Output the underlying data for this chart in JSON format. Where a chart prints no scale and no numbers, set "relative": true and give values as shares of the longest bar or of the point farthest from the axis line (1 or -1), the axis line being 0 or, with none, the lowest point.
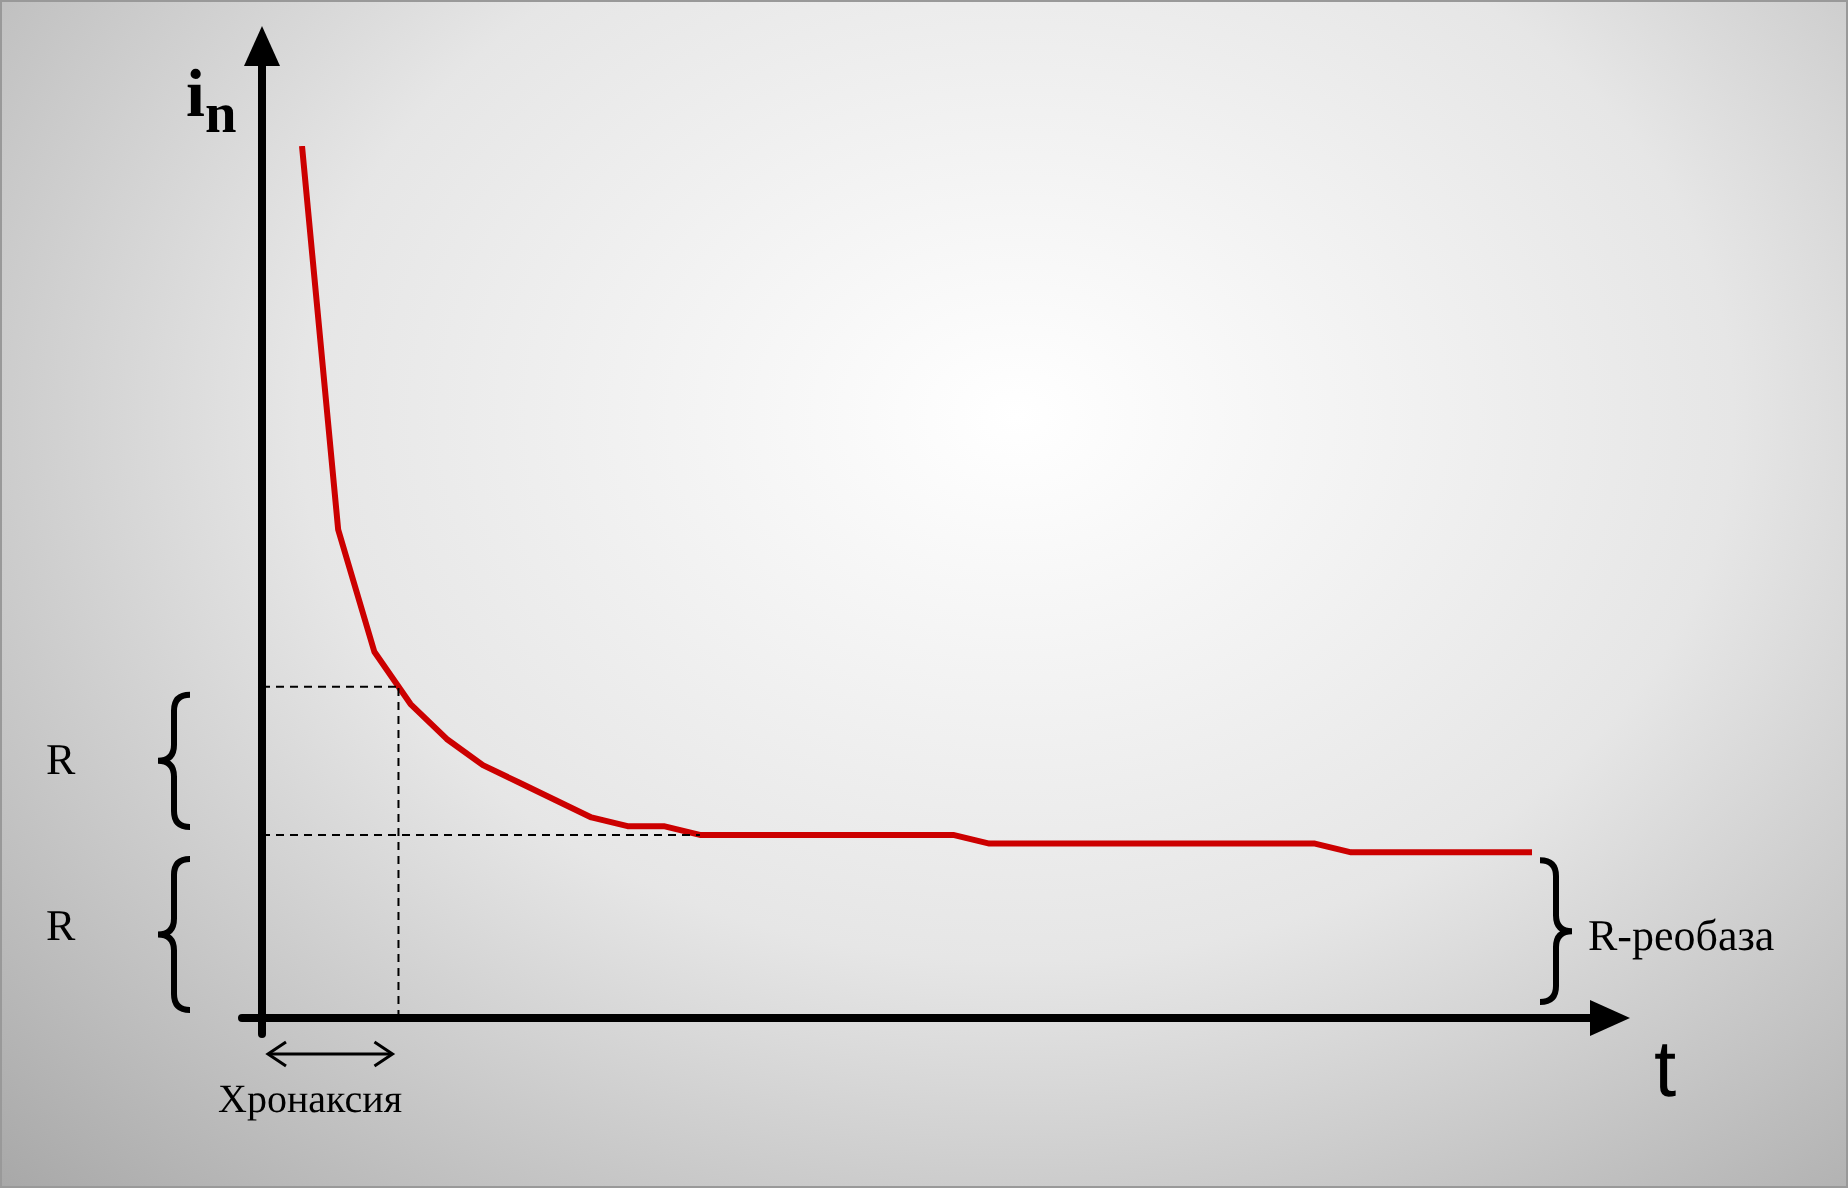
{
  "chart_data": {
    "type": "line",
    "relative": true,
    "xlabel": "t",
    "ylabel": "i$_{n}$",
    "categories": [
      null,
      null,
      null,
      null,
      null,
      null,
      null,
      null,
      null,
      null,
      null,
      null,
      null,
      null,
      null,
      null,
      null,
      null,
      null,
      null,
      null,
      null,
      null,
      null,
      null,
      null,
      null,
      null,
      null,
      null,
      null,
      null,
      null,
      null,
      null
    ],
    "series": [
      {
        "color": "#cc0000",
        "values": [
          1,
          0.56,
          0.42,
          0.36,
          0.32,
          0.29,
          0.27,
          0.25,
          0.23,
          0.22,
          0.22,
          0.21,
          0.21,
          0.21,
          0.21,
          0.21,
          0.21,
          0.21,
          0.21,
          0.2,
          0.2,
          0.2,
          0.2,
          0.2,
          0.2,
          0.2,
          0.2,
          0.2,
          0.2,
          0.19,
          0.19,
          0.19,
          0.19,
          0.19,
          0.19
        ]
      }
    ],
    "annotations": [
      "R",
      "R",
      "R-реобаза",
      "Хронаксия"
    ],
    "marker": "none",
    "tick_labels": false
  }
}
